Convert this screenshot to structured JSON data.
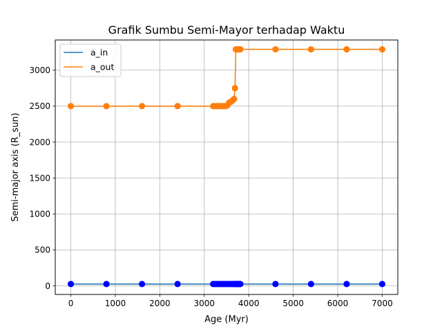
{
  "chart_data": {
    "type": "line",
    "title": "Grafik Sumbu Semi-Mayor terhadap Waktu",
    "xlabel": "Age (Myr)",
    "ylabel": "Semi-major axis (R_sun)",
    "xlim": [
      -350,
      7350
    ],
    "ylim": [
      -120,
      3420
    ],
    "xticks": [
      0,
      1000,
      2000,
      3000,
      4000,
      5000,
      6000,
      7000
    ],
    "yticks": [
      0,
      500,
      1000,
      1500,
      2000,
      2500,
      3000
    ],
    "grid": true,
    "legend_position": "top-left",
    "series": [
      {
        "name": "a_in",
        "color": "#1f77b4",
        "marker_color": "#0000ff",
        "x": [
          0,
          800,
          1600,
          2400,
          3200,
          3240,
          3280,
          3320,
          3360,
          3400,
          3440,
          3480,
          3520,
          3560,
          3600,
          3640,
          3670,
          3690,
          3710,
          3730,
          3750,
          3770,
          3790,
          3810,
          4600,
          5400,
          6200,
          7000
        ],
        "y": [
          25,
          25,
          25,
          25,
          25,
          25,
          25,
          25,
          25,
          25,
          25,
          25,
          25,
          25,
          25,
          25,
          25,
          25,
          25,
          25,
          25,
          25,
          25,
          25,
          25,
          25,
          25,
          25
        ]
      },
      {
        "name": "a_out",
        "color": "#ff7f0e",
        "marker_color": "#ff7f0e",
        "x": [
          0,
          800,
          1600,
          2400,
          3200,
          3240,
          3280,
          3320,
          3360,
          3400,
          3440,
          3480,
          3520,
          3560,
          3600,
          3640,
          3670,
          3690,
          3710,
          3730,
          3750,
          3770,
          3790,
          3810,
          4600,
          5400,
          6200,
          7000
        ],
        "y": [
          2500,
          2500,
          2500,
          2500,
          2500,
          2500,
          2500,
          2500,
          2500,
          2500,
          2500,
          2500,
          2510,
          2550,
          2560,
          2580,
          2600,
          2750,
          3290,
          3290,
          3290,
          3290,
          3290,
          3290,
          3290,
          3290,
          3290,
          3290
        ]
      }
    ]
  }
}
